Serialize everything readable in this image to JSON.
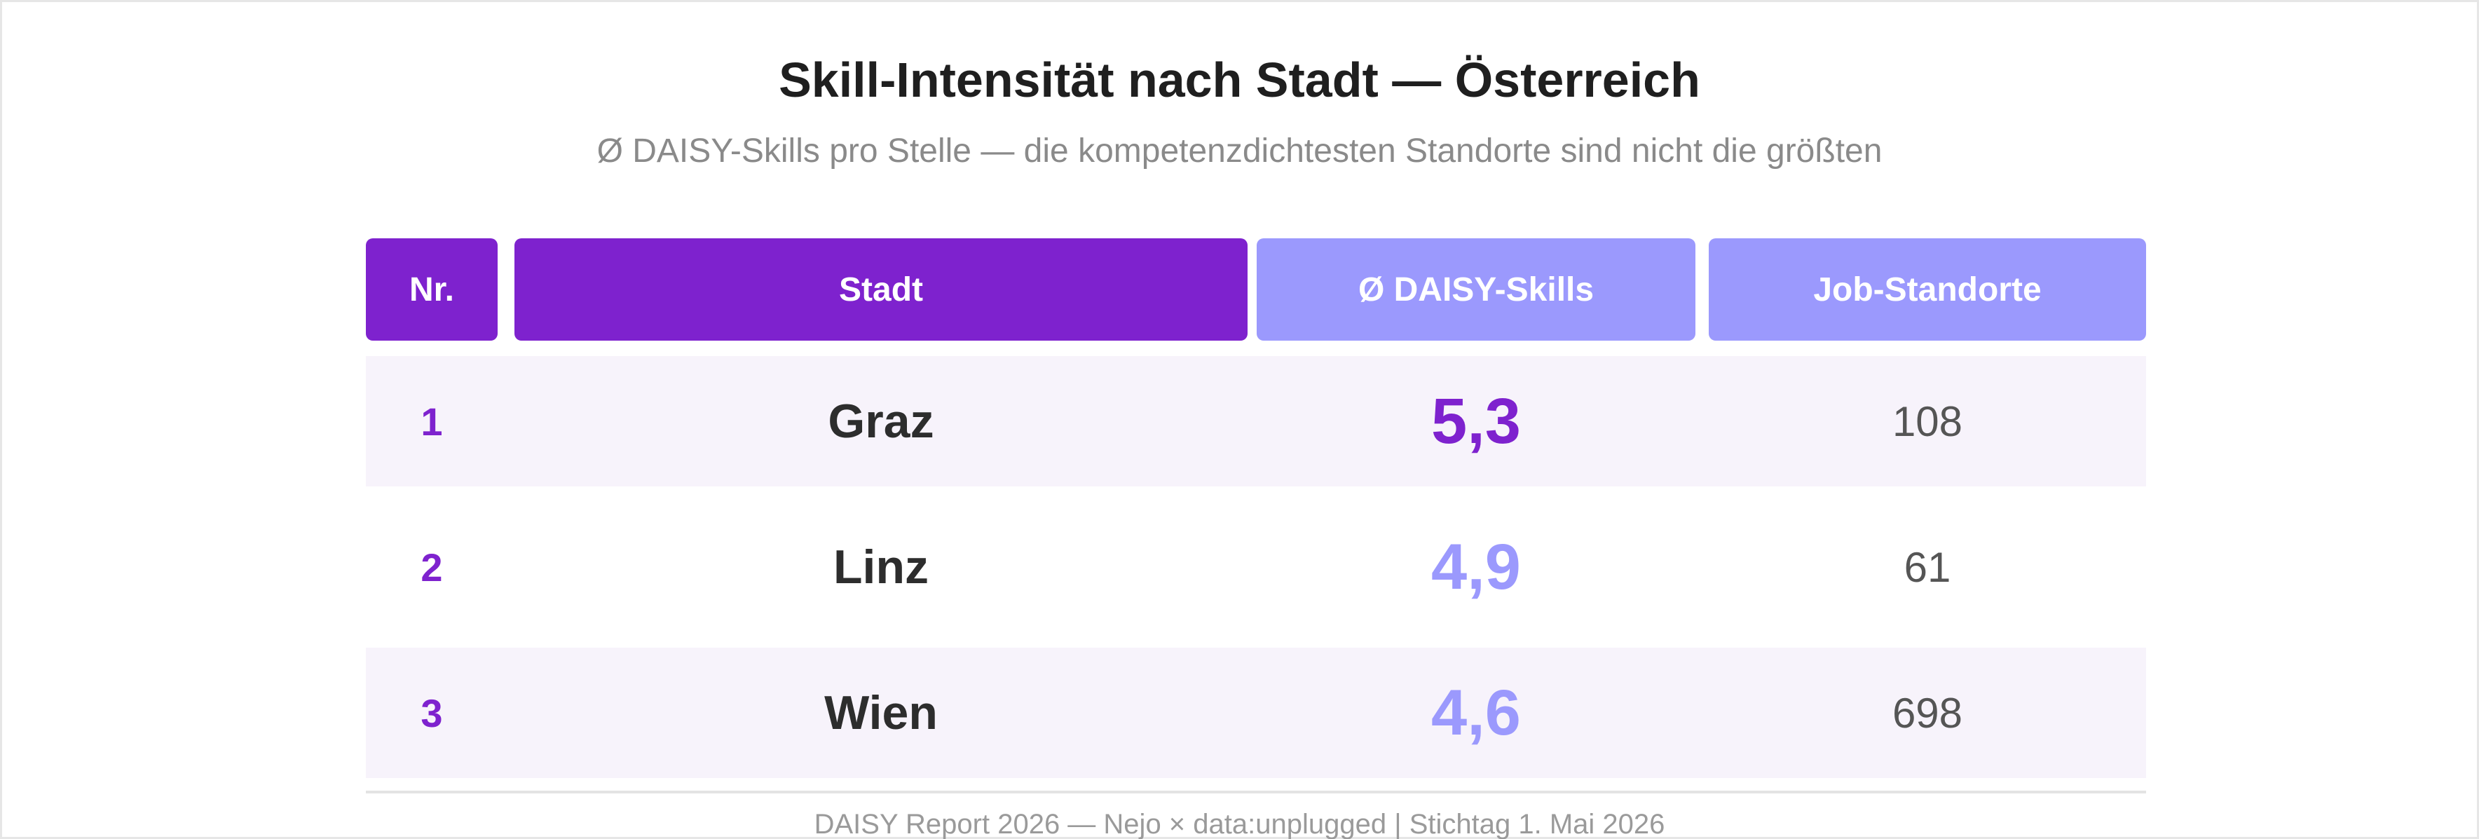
{
  "header": {
    "title": "Skill-Intensität nach Stadt — Österreich",
    "subtitle": "Ø DAISY-Skills pro Stelle — die kompetenzdichtesten Standorte sind nicht die größten"
  },
  "chart_data": {
    "type": "table",
    "title": "Skill-Intensität nach Stadt — Österreich",
    "subtitle": "Ø DAISY-Skills pro Stelle — die kompetenzdichtesten Standorte sind nicht die größten",
    "columns": [
      "Nr.",
      "Stadt",
      "Ø DAISY-Skills",
      "Job-Standorte"
    ],
    "rows": [
      {
        "nr": "1",
        "city": "Graz",
        "skills": "5,3",
        "jobs": "108"
      },
      {
        "nr": "2",
        "city": "Linz",
        "skills": "4,9",
        "jobs": "61"
      },
      {
        "nr": "3",
        "city": "Wien",
        "skills": "4,6",
        "jobs": "698"
      }
    ],
    "colors": {
      "primary": "#7e22ce",
      "secondary": "#9b99fd",
      "row_shade": "#f7f3fb"
    }
  },
  "footer": {
    "text": "DAISY Report 2026 — Nejo × data:unplugged | Stichtag 1. Mai 2026"
  }
}
